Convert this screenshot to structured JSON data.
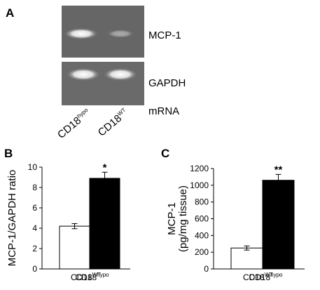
{
  "panel_a": {
    "label": "A",
    "gel_labels": [
      "MCP-1",
      "GAPDH"
    ],
    "footer": "mRNA",
    "lanes": [
      "CD18",
      "CD18"
    ],
    "lane_superscripts": [
      "hypo",
      "WT"
    ]
  },
  "chart_data": [
    {
      "type": "bar",
      "panel_label": "B",
      "y_label": [
        "MCP-1/GAPDH ratio"
      ],
      "categories": [
        "CD18",
        "CD18"
      ],
      "category_superscripts": [
        "WT",
        "hypo"
      ],
      "values": [
        4.2,
        8.9
      ],
      "errors": [
        0.25,
        0.6
      ],
      "colors": [
        "#ffffff",
        "#000000"
      ],
      "annotations": [
        null,
        "*"
      ],
      "ylim": [
        0,
        10
      ],
      "yticks": [
        0,
        2,
        4,
        6,
        8,
        10
      ]
    },
    {
      "type": "bar",
      "panel_label": "C",
      "y_label": [
        "MCP-1",
        "(pg/mg tissue)"
      ],
      "categories": [
        "CD18",
        "CD18"
      ],
      "category_superscripts": [
        "WT",
        "hypo"
      ],
      "values": [
        250,
        1060
      ],
      "errors": [
        25,
        70
      ],
      "colors": [
        "#ffffff",
        "#000000"
      ],
      "annotations": [
        null,
        "**"
      ],
      "ylim": [
        0,
        1200
      ],
      "yticks": [
        0,
        200,
        400,
        600,
        800,
        1000,
        1200
      ]
    }
  ]
}
